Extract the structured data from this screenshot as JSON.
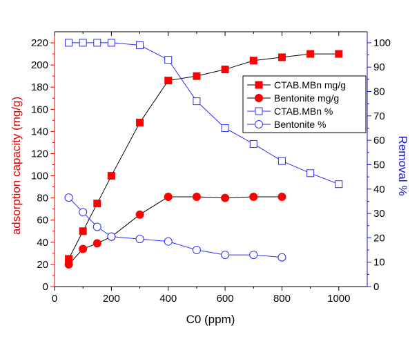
{
  "chart_data": {
    "type": "line",
    "title": "",
    "xlabel": "C0 (ppm)",
    "ylabel_left": "adsorption capacity (mg/g)",
    "ylabel_right": "Removal %",
    "xlim": [
      0,
      1100
    ],
    "ylim_left": [
      0,
      230
    ],
    "ylim_right": [
      0,
      104.5
    ],
    "x_ticks": [
      0,
      200,
      400,
      600,
      800,
      1000
    ],
    "y_left_ticks": [
      0,
      20,
      40,
      60,
      80,
      100,
      120,
      140,
      160,
      180,
      200,
      220
    ],
    "y_right_ticks": [
      0,
      10,
      20,
      30,
      40,
      50,
      60,
      70,
      80,
      90,
      100
    ],
    "grid": false,
    "legend_position": "right",
    "colors": {
      "left_axis": "#dd0000",
      "right_axis": "#1414c8",
      "capacity_series": "#ff0000",
      "removal_series": "#2a2aff",
      "line": "#000000"
    },
    "series": [
      {
        "name": "CTAB.MBn mg/g",
        "axis": "left",
        "marker": "square-filled",
        "x": [
          50,
          100,
          150,
          200,
          300,
          400,
          500,
          600,
          700,
          800,
          900,
          1000
        ],
        "values": [
          25,
          50,
          75,
          100,
          148,
          186,
          190,
          196,
          204,
          207,
          210,
          210
        ]
      },
      {
        "name": "Bentonite mg/g",
        "axis": "left",
        "marker": "circle-filled",
        "x": [
          50,
          100,
          150,
          200,
          300,
          400,
          500,
          600,
          700,
          800
        ],
        "values": [
          20,
          34,
          39,
          45,
          65,
          81,
          81,
          80,
          81,
          81
        ]
      },
      {
        "name": "CTAB.MBn %",
        "axis": "right",
        "marker": "square-open",
        "x": [
          50,
          100,
          150,
          200,
          300,
          400,
          500,
          600,
          700,
          800,
          900,
          1000
        ],
        "values": [
          100,
          100,
          100,
          100,
          99,
          93,
          76,
          65,
          58.5,
          51.5,
          46.5,
          42
        ]
      },
      {
        "name": "Bentonite %",
        "axis": "right",
        "marker": "circle-open",
        "x": [
          50,
          100,
          150,
          200,
          300,
          400,
          500,
          600,
          700,
          800
        ],
        "values": [
          36.5,
          30.5,
          24.5,
          20.5,
          19.5,
          18.5,
          15,
          13,
          13,
          12
        ]
      }
    ]
  }
}
